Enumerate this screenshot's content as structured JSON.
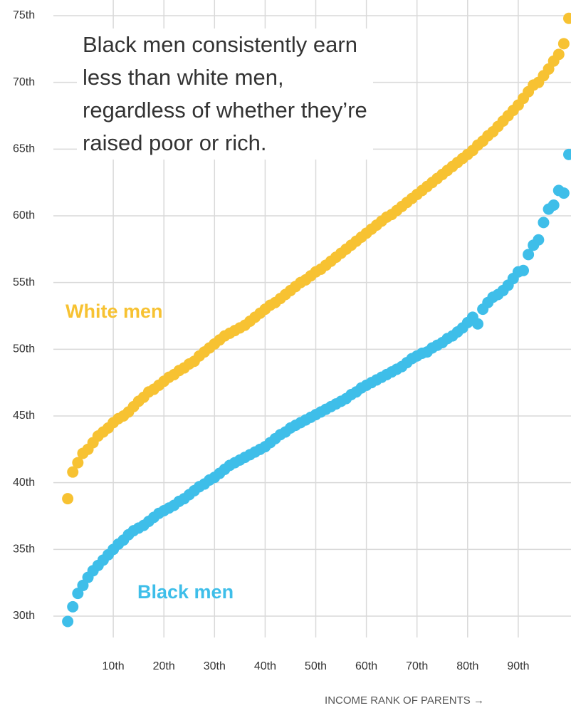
{
  "chart_data": {
    "type": "scatter",
    "annotation": "Black men consistently earn less than white men, regardless of whether they’re raised poor or rich.",
    "x_label": "INCOME RANK OF PARENTS →",
    "x": [
      1,
      2,
      3,
      4,
      5,
      6,
      7,
      8,
      9,
      10,
      11,
      12,
      13,
      14,
      15,
      16,
      17,
      18,
      19,
      20,
      21,
      22,
      23,
      24,
      25,
      26,
      27,
      28,
      29,
      30,
      31,
      32,
      33,
      34,
      35,
      36,
      37,
      38,
      39,
      40,
      41,
      42,
      43,
      44,
      45,
      46,
      47,
      48,
      49,
      50,
      51,
      52,
      53,
      54,
      55,
      56,
      57,
      58,
      59,
      60,
      61,
      62,
      63,
      64,
      65,
      66,
      67,
      68,
      69,
      70,
      71,
      72,
      73,
      74,
      75,
      76,
      77,
      78,
      79,
      80,
      81,
      82,
      83,
      84,
      85,
      86,
      87,
      88,
      89,
      90,
      91,
      92,
      93,
      94,
      95,
      96,
      97,
      98,
      99,
      100
    ],
    "series": [
      {
        "name": "White men",
        "color": "#f7c232",
        "values": [
          38.8,
          40.8,
          41.5,
          42.2,
          42.5,
          43.0,
          43.5,
          43.8,
          44.1,
          44.5,
          44.8,
          45.0,
          45.3,
          45.7,
          46.1,
          46.4,
          46.8,
          47.0,
          47.3,
          47.6,
          47.9,
          48.1,
          48.4,
          48.6,
          48.9,
          49.1,
          49.5,
          49.8,
          50.1,
          50.4,
          50.7,
          51.0,
          51.2,
          51.4,
          51.6,
          51.8,
          52.1,
          52.4,
          52.7,
          53.0,
          53.3,
          53.5,
          53.8,
          54.1,
          54.4,
          54.7,
          55.0,
          55.2,
          55.5,
          55.8,
          56.0,
          56.3,
          56.6,
          56.9,
          57.2,
          57.5,
          57.8,
          58.1,
          58.4,
          58.7,
          59.0,
          59.3,
          59.6,
          59.9,
          60.1,
          60.4,
          60.7,
          61.0,
          61.3,
          61.6,
          61.9,
          62.2,
          62.5,
          62.8,
          63.1,
          63.4,
          63.7,
          64.0,
          64.3,
          64.6,
          64.9,
          65.3,
          65.6,
          66.0,
          66.3,
          66.7,
          67.1,
          67.5,
          67.9,
          68.3,
          68.8,
          69.3,
          69.8,
          70.0,
          70.5,
          71.0,
          71.6,
          72.1,
          72.9,
          74.8
        ]
      },
      {
        "name": "Black men",
        "color": "#3ebee9",
        "values": [
          29.6,
          30.7,
          31.7,
          32.3,
          32.9,
          33.4,
          33.8,
          34.2,
          34.6,
          35.0,
          35.4,
          35.7,
          36.1,
          36.4,
          36.6,
          36.8,
          37.1,
          37.4,
          37.7,
          37.9,
          38.1,
          38.3,
          38.6,
          38.8,
          39.1,
          39.4,
          39.7,
          39.9,
          40.2,
          40.4,
          40.7,
          41.0,
          41.3,
          41.5,
          41.7,
          41.9,
          42.1,
          42.3,
          42.5,
          42.7,
          43.0,
          43.3,
          43.6,
          43.8,
          44.1,
          44.3,
          44.5,
          44.7,
          44.9,
          45.1,
          45.3,
          45.5,
          45.7,
          45.9,
          46.1,
          46.3,
          46.6,
          46.8,
          47.1,
          47.3,
          47.5,
          47.7,
          47.9,
          48.1,
          48.3,
          48.5,
          48.7,
          49.0,
          49.3,
          49.5,
          49.7,
          49.8,
          50.1,
          50.3,
          50.5,
          50.8,
          51.0,
          51.3,
          51.6,
          52.0,
          52.4,
          51.9,
          53.0,
          53.5,
          53.9,
          54.1,
          54.4,
          54.8,
          55.3,
          55.8,
          55.9,
          57.1,
          57.8,
          58.2,
          59.5,
          60.5,
          60.8,
          61.9,
          61.7,
          64.6
        ]
      }
    ],
    "xlim": [
      0,
      100
    ],
    "xticks": [
      {
        "value": 10,
        "label": "10th"
      },
      {
        "value": 20,
        "label": "20th"
      },
      {
        "value": 30,
        "label": "30th"
      },
      {
        "value": 40,
        "label": "40th"
      },
      {
        "value": 50,
        "label": "50th"
      },
      {
        "value": 60,
        "label": "60th"
      },
      {
        "value": 70,
        "label": "70th"
      },
      {
        "value": 80,
        "label": "80th"
      },
      {
        "value": 90,
        "label": "90th"
      }
    ],
    "ylim": [
      30,
      75
    ],
    "yticks": [
      {
        "value": 30,
        "label": "30th"
      },
      {
        "value": 35,
        "label": "35th"
      },
      {
        "value": 40,
        "label": "40th"
      },
      {
        "value": 45,
        "label": "45th"
      },
      {
        "value": 50,
        "label": "50th"
      },
      {
        "value": 55,
        "label": "55th"
      },
      {
        "value": 60,
        "label": "60th"
      },
      {
        "value": 65,
        "label": "65th"
      },
      {
        "value": 70,
        "label": "70th"
      },
      {
        "value": 75,
        "label": "75th"
      }
    ],
    "grid": true
  }
}
